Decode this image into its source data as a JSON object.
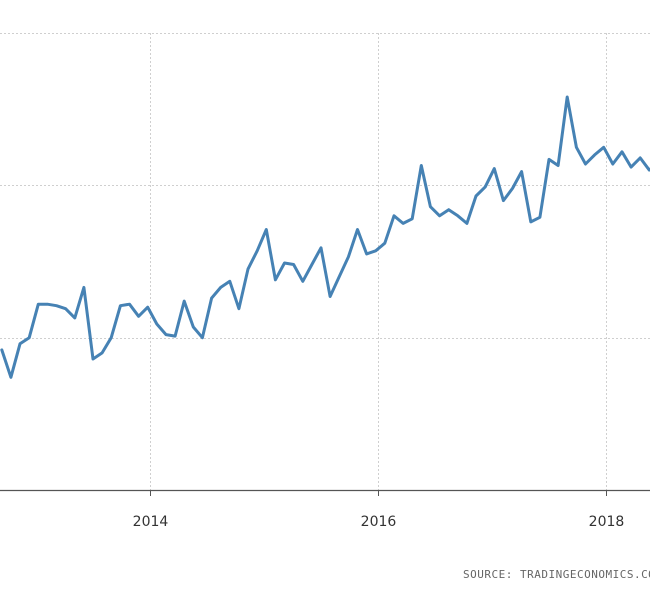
{
  "chart_data": {
    "type": "line",
    "title": "",
    "xlabel": "",
    "ylabel": "",
    "xlim": [
      2012.7,
      2018.47
    ],
    "ylim": [
      0,
      3
    ],
    "grid": true,
    "y_tick_labels_visible": false,
    "x_ticks": [
      {
        "value": 2014,
        "label": "2014"
      },
      {
        "value": 2016,
        "label": "2016"
      },
      {
        "value": 2018,
        "label": "2018"
      }
    ],
    "y_gridlines": [
      0,
      1,
      2,
      3
    ],
    "color": "#4682b4",
    "series": [
      {
        "x": [
          2012.7,
          2012.78,
          2012.86,
          2012.94,
          2013.02,
          2013.1,
          2013.18,
          2013.26,
          2013.34,
          2013.42,
          2013.5,
          2013.58,
          2013.66,
          2013.74,
          2013.82,
          2013.9,
          2013.98,
          2014.06,
          2014.14,
          2014.22,
          2014.3,
          2014.38,
          2014.46,
          2014.54,
          2014.62,
          2014.7,
          2014.78,
          2014.86,
          2014.94,
          2015.02,
          2015.1,
          2015.18,
          2015.26,
          2015.34,
          2015.42,
          2015.5,
          2015.58,
          2015.66,
          2015.74,
          2015.82,
          2015.9,
          2015.98,
          2016.06,
          2016.14,
          2016.22,
          2016.3,
          2016.38,
          2016.46,
          2016.54,
          2016.62,
          2016.7,
          2016.78,
          2016.86,
          2016.94,
          2017.02,
          2017.1,
          2017.18,
          2017.26,
          2017.34,
          2017.42,
          2017.5,
          2017.58,
          2017.66,
          2017.74,
          2017.82,
          2017.9,
          2017.98,
          2018.06,
          2018.14,
          2018.22,
          2018.3,
          2018.38,
          2018.46
        ],
        "values": [
          0.92,
          0.74,
          0.96,
          1.0,
          1.22,
          1.22,
          1.21,
          1.19,
          1.13,
          1.33,
          0.86,
          0.9,
          1.0,
          1.21,
          1.22,
          1.14,
          1.2,
          1.09,
          1.02,
          1.01,
          1.24,
          1.07,
          1.0,
          1.26,
          1.33,
          1.37,
          1.19,
          1.45,
          1.57,
          1.71,
          1.38,
          1.49,
          1.48,
          1.37,
          1.48,
          1.59,
          1.27,
          1.4,
          1.53,
          1.71,
          1.55,
          1.57,
          1.62,
          1.8,
          1.75,
          1.78,
          2.13,
          1.86,
          1.8,
          1.84,
          1.8,
          1.75,
          1.93,
          1.99,
          2.11,
          1.9,
          1.98,
          2.09,
          1.76,
          1.79,
          2.17,
          2.13,
          2.58,
          2.25,
          2.14,
          2.2,
          2.25,
          2.14,
          2.22,
          2.12,
          2.18,
          2.1,
          2.15
        ]
      }
    ],
    "source": "SOURCE: TRADINGECONOMICS.COM"
  }
}
